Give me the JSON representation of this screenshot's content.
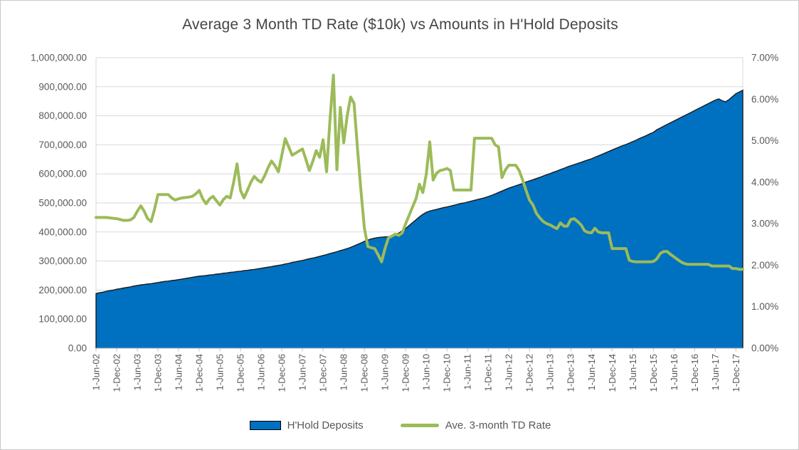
{
  "title": "Average 3 Month TD Rate ($10k) vs Amounts in H'Hold Deposits",
  "colors": {
    "area_fill": "#0070C0",
    "area_edge": "#1b1b1b",
    "line_color": "#9CBB59",
    "axis_text": "#595959",
    "title_text": "#454545",
    "gridline": "#D9D9D9",
    "axis_line": "#ABABAB",
    "tick_mark": "#BFBFBF"
  },
  "legend": {
    "items": [
      {
        "label": "H'Hold Deposits",
        "type": "area"
      },
      {
        "label": "Ave. 3-month TD Rate",
        "type": "line"
      }
    ]
  },
  "chart_data": {
    "type": "area",
    "subtype": "area-left-axis + line-right-axis, monthly series Jun-2002 to Feb-2018",
    "title": "Average 3 Month TD Rate ($10k) vs Amounts in H'Hold Deposits",
    "grid": "horizontal only",
    "legend_position": "bottom",
    "x_tick_labels": [
      "1-Jun-02",
      "1-Dec-02",
      "1-Jun-03",
      "1-Dec-03",
      "1-Jun-04",
      "1-Dec-04",
      "1-Jun-05",
      "1-Dec-05",
      "1-Jun-06",
      "1-Dec-06",
      "1-Jun-07",
      "1-Dec-07",
      "1-Jun-08",
      "1-Dec-08",
      "1-Jun-09",
      "1-Dec-09",
      "1-Jun-10",
      "1-Dec-10",
      "1-Jun-11",
      "1-Dec-11",
      "1-Jun-12",
      "1-Dec-12",
      "1-Jun-13",
      "1-Dec-13",
      "1-Jun-14",
      "1-Dec-14",
      "1-Jun-15",
      "1-Dec-15",
      "1-Jun-16",
      "1-Dec-16",
      "1-Jun-17",
      "1-Dec-17"
    ],
    "x_months_per_tick": 6,
    "y_left": {
      "min": 0,
      "max": 1000000,
      "tick_labels": [
        "1,000,000.00",
        "900,000.00",
        "800,000.00",
        "700,000.00",
        "600,000.00",
        "500,000.00",
        "400,000.00",
        "300,000.00",
        "200,000.00",
        "100,000.00",
        "0.00"
      ]
    },
    "y_right": {
      "min": 0,
      "max": 7,
      "tick_labels": [
        "7.00%",
        "6.00%",
        "5.00%",
        "4.00%",
        "3.00%",
        "2.00%",
        "1.00%",
        "0.00%"
      ]
    },
    "series": [
      {
        "name": "H'Hold Deposits",
        "axis": "left",
        "style": "area",
        "values": [
          188000,
          191000,
          193000,
          196000,
          198000,
          200000,
          203000,
          205000,
          207000,
          209000,
          211000,
          214000,
          216000,
          218000,
          219000,
          221000,
          222000,
          224000,
          226000,
          228000,
          230000,
          231000,
          233000,
          234000,
          236000,
          238000,
          240000,
          242000,
          244000,
          246000,
          248000,
          249000,
          250000,
          252000,
          253000,
          255000,
          256000,
          258000,
          259000,
          261000,
          262000,
          264000,
          265000,
          267000,
          268000,
          270000,
          271000,
          273000,
          275000,
          277000,
          279000,
          281000,
          283000,
          285000,
          287000,
          290000,
          292000,
          295000,
          297000,
          300000,
          302000,
          305000,
          308000,
          310000,
          313000,
          316000,
          319000,
          322000,
          326000,
          329000,
          332000,
          336000,
          339000,
          343000,
          347000,
          352000,
          357000,
          362000,
          368000,
          372000,
          376000,
          379000,
          381000,
          382000,
          383000,
          384000,
          386000,
          390000,
          396000,
          404000,
          412000,
          422000,
          432000,
          442000,
          452000,
          461000,
          468000,
          472000,
          475000,
          478000,
          481000,
          484000,
          486000,
          489000,
          492000,
          495000,
          498000,
          500000,
          503000,
          506000,
          509000,
          512000,
          515000,
          518000,
          522000,
          526000,
          531000,
          536000,
          541000,
          546000,
          551000,
          555000,
          559000,
          563000,
          567000,
          572000,
          576000,
          580000,
          584000,
          588000,
          593000,
          597000,
          601000,
          606000,
          610000,
          615000,
          619000,
          624000,
          628000,
          632000,
          636000,
          640000,
          644000,
          648000,
          652000,
          657000,
          662000,
          667000,
          672000,
          677000,
          682000,
          687000,
          692000,
          697000,
          701000,
          706000,
          711000,
          716000,
          722000,
          727000,
          732000,
          738000,
          743000,
          752000,
          758000,
          764000,
          770000,
          776000,
          782000,
          788000,
          794000,
          800000,
          806000,
          812000,
          818000,
          824000,
          830000,
          836000,
          842000,
          848000,
          854000,
          858000,
          852000,
          848000,
          856000,
          866000,
          876000,
          882000,
          888000
        ]
      },
      {
        "name": "Ave. 3-month TD Rate",
        "axis": "right",
        "style": "line",
        "values": [
          3.15,
          3.15,
          3.15,
          3.15,
          3.14,
          3.13,
          3.12,
          3.1,
          3.08,
          3.08,
          3.09,
          3.15,
          3.3,
          3.43,
          3.3,
          3.12,
          3.05,
          3.35,
          3.7,
          3.7,
          3.7,
          3.7,
          3.62,
          3.57,
          3.6,
          3.62,
          3.63,
          3.64,
          3.66,
          3.72,
          3.8,
          3.6,
          3.48,
          3.6,
          3.66,
          3.55,
          3.45,
          3.58,
          3.66,
          3.62,
          4.0,
          4.44,
          3.8,
          3.62,
          3.8,
          4.0,
          4.14,
          4.05,
          4.0,
          4.15,
          4.35,
          4.51,
          4.4,
          4.25,
          4.65,
          5.05,
          4.85,
          4.65,
          4.7,
          4.75,
          4.8,
          4.55,
          4.28,
          4.5,
          4.76,
          4.6,
          5.02,
          4.25,
          5.5,
          6.58,
          4.3,
          5.8,
          4.95,
          5.6,
          6.05,
          5.9,
          4.8,
          3.8,
          2.9,
          2.45,
          2.42,
          2.4,
          2.25,
          2.08,
          2.4,
          2.66,
          2.7,
          2.75,
          2.72,
          2.78,
          3.0,
          3.2,
          3.4,
          3.6,
          3.95,
          3.75,
          4.2,
          4.97,
          4.05,
          4.22,
          4.28,
          4.3,
          4.33,
          4.28,
          3.81,
          3.81,
          3.81,
          3.81,
          3.81,
          3.81,
          5.06,
          5.06,
          5.06,
          5.06,
          5.06,
          5.06,
          4.9,
          4.85,
          4.11,
          4.3,
          4.41,
          4.41,
          4.41,
          4.28,
          4.05,
          3.8,
          3.57,
          3.45,
          3.25,
          3.14,
          3.05,
          3.0,
          2.97,
          2.92,
          2.88,
          3.02,
          2.94,
          2.94,
          3.1,
          3.12,
          3.05,
          2.97,
          2.83,
          2.79,
          2.78,
          2.89,
          2.8,
          2.78,
          2.78,
          2.78,
          2.4,
          2.4,
          2.4,
          2.4,
          2.4,
          2.12,
          2.09,
          2.08,
          2.08,
          2.08,
          2.08,
          2.08,
          2.09,
          2.15,
          2.28,
          2.33,
          2.33,
          2.26,
          2.2,
          2.14,
          2.08,
          2.04,
          2.02,
          2.02,
          2.02,
          2.02,
          2.02,
          2.02,
          2.02,
          1.98,
          1.98,
          1.98,
          1.98,
          1.98,
          1.98,
          1.92,
          1.92,
          1.9,
          1.9
        ]
      }
    ]
  }
}
